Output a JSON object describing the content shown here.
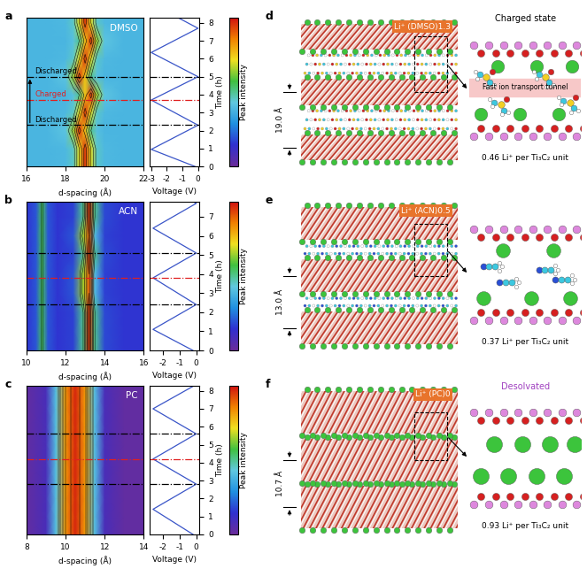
{
  "chart_data": [
    {
      "panel": "a",
      "type": "heatmap",
      "name": "DMSO",
      "x_label": "d-spacing (Å)",
      "xlim": [
        16,
        22
      ],
      "xticks": [
        16,
        18,
        20,
        22
      ],
      "y_label": "Time (h)",
      "ylim": [
        0,
        8.3
      ],
      "yticks": [
        0,
        1,
        2,
        3,
        4,
        5,
        6,
        7,
        8
      ],
      "d_spacing": [
        16,
        17,
        18,
        18.4,
        18.7,
        19.0,
        19.3,
        19.6,
        20,
        21,
        22
      ],
      "time": [
        0,
        1,
        2,
        3,
        4,
        5,
        6,
        7,
        8,
        8.3
      ],
      "cells": [
        [
          0.38,
          0.38,
          0.39,
          0.45,
          0.7,
          0.95,
          0.7,
          0.45,
          0.39,
          0.38,
          0.38
        ],
        [
          0.38,
          0.38,
          0.39,
          0.45,
          0.7,
          0.95,
          0.7,
          0.45,
          0.39,
          0.38,
          0.38
        ],
        [
          0.38,
          0.38,
          0.42,
          0.65,
          0.95,
          0.75,
          0.5,
          0.41,
          0.38,
          0.38,
          0.38
        ],
        [
          0.38,
          0.38,
          0.39,
          0.45,
          0.7,
          0.95,
          0.7,
          0.45,
          0.39,
          0.38,
          0.38
        ],
        [
          0.38,
          0.38,
          0.38,
          0.41,
          0.5,
          0.75,
          0.95,
          0.65,
          0.42,
          0.38,
          0.38
        ],
        [
          0.38,
          0.38,
          0.42,
          0.65,
          0.95,
          0.75,
          0.5,
          0.41,
          0.38,
          0.38,
          0.38
        ],
        [
          0.38,
          0.38,
          0.39,
          0.45,
          0.7,
          0.95,
          0.7,
          0.45,
          0.39,
          0.38,
          0.38
        ],
        [
          0.38,
          0.38,
          0.38,
          0.41,
          0.5,
          0.75,
          0.95,
          0.65,
          0.42,
          0.38,
          0.38
        ],
        [
          0.38,
          0.38,
          0.39,
          0.45,
          0.7,
          0.95,
          0.7,
          0.45,
          0.39,
          0.38,
          0.38
        ],
        [
          0.38,
          0.38,
          0.39,
          0.45,
          0.7,
          0.95,
          0.7,
          0.45,
          0.39,
          0.38,
          0.38
        ]
      ],
      "colorbar": {
        "label": "Peak intensity",
        "range": [
          0,
          1
        ],
        "ticks": []
      },
      "markers": [
        {
          "time": 2.3,
          "label": "Discharged",
          "color": "#000000"
        },
        {
          "time": 3.7,
          "label": "Charged",
          "color": "#e02020"
        },
        {
          "time": 5.0,
          "label": "Discharged",
          "color": "#000000"
        }
      ],
      "voltage": {
        "type": "line",
        "x_label": "Voltage (V)",
        "xlim": [
          -3.1,
          0.1
        ],
        "xticks": [
          -3,
          -2,
          -1,
          0
        ],
        "time": [
          0,
          0.95,
          2.3,
          3.7,
          5.0,
          6.35,
          7.7,
          8.3
        ],
        "values": [
          -0.2,
          -3,
          0,
          -3,
          0,
          -3,
          0,
          -1.3
        ],
        "color": "#3a55c8"
      }
    },
    {
      "panel": "b",
      "type": "heatmap",
      "name": "ACN",
      "x_label": "d-spacing (Å)",
      "xlim": [
        10,
        16
      ],
      "xticks": [
        10,
        12,
        14,
        16
      ],
      "y_label": "Time (h)",
      "ylim": [
        0,
        7.8
      ],
      "yticks": [
        0,
        1,
        2,
        3,
        4,
        5,
        6,
        7
      ],
      "d_spacing": [
        10,
        10.5,
        10.8,
        11.1,
        11.6,
        12.4,
        12.9,
        13.2,
        13.5,
        14,
        15,
        16
      ],
      "time": [
        0,
        1,
        2,
        3,
        4,
        5,
        6,
        7,
        7.8
      ],
      "cells": [
        [
          0.15,
          0.2,
          0.55,
          0.2,
          0.15,
          0.17,
          0.5,
          0.95,
          0.5,
          0.18,
          0.15,
          0.15
        ],
        [
          0.15,
          0.2,
          0.55,
          0.2,
          0.15,
          0.17,
          0.5,
          0.95,
          0.5,
          0.18,
          0.15,
          0.15
        ],
        [
          0.15,
          0.2,
          0.55,
          0.2,
          0.15,
          0.17,
          0.5,
          0.95,
          0.5,
          0.18,
          0.15,
          0.15
        ],
        [
          0.15,
          0.2,
          0.55,
          0.2,
          0.15,
          0.2,
          0.65,
          0.9,
          0.4,
          0.17,
          0.15,
          0.15
        ],
        [
          0.15,
          0.2,
          0.55,
          0.2,
          0.15,
          0.2,
          0.65,
          0.9,
          0.4,
          0.17,
          0.15,
          0.15
        ],
        [
          0.15,
          0.2,
          0.55,
          0.2,
          0.15,
          0.17,
          0.5,
          0.95,
          0.5,
          0.18,
          0.15,
          0.15
        ],
        [
          0.15,
          0.2,
          0.55,
          0.2,
          0.15,
          0.2,
          0.65,
          0.9,
          0.4,
          0.17,
          0.15,
          0.15
        ],
        [
          0.15,
          0.2,
          0.55,
          0.2,
          0.15,
          0.17,
          0.5,
          0.95,
          0.5,
          0.18,
          0.15,
          0.15
        ],
        [
          0.15,
          0.2,
          0.55,
          0.2,
          0.15,
          0.17,
          0.5,
          0.95,
          0.5,
          0.18,
          0.15,
          0.15
        ]
      ],
      "colorbar": {
        "label": "Peak intensity",
        "range": [
          0,
          1
        ],
        "ticks": []
      },
      "markers": [
        {
          "time": 2.4,
          "color": "#000000"
        },
        {
          "time": 3.8,
          "color": "#e02020"
        },
        {
          "time": 5.1,
          "color": "#000000"
        }
      ],
      "voltage": {
        "type": "line",
        "x_label": "Voltage (V)",
        "xlim": [
          -2.8,
          0.2
        ],
        "xticks": [
          -2,
          -1,
          0
        ],
        "time": [
          0,
          1.1,
          2.4,
          3.8,
          5.1,
          6.4,
          7.7,
          7.8
        ],
        "values": [
          -0.2,
          -2.6,
          0,
          -2.6,
          0,
          -2.6,
          0,
          -0.2
        ],
        "color": "#3a55c8"
      }
    },
    {
      "panel": "c",
      "type": "heatmap",
      "name": "PC",
      "x_label": "d-spacing (Å)",
      "xlim": [
        8,
        14
      ],
      "xticks": [
        8,
        10,
        12,
        14
      ],
      "y_label": "Time (h)",
      "ylim": [
        0,
        8.3
      ],
      "yticks": [
        0,
        1,
        2,
        3,
        4,
        5,
        6,
        7,
        8
      ],
      "d_spacing": [
        8,
        9,
        9.5,
        10,
        10.5,
        11,
        11.5,
        12,
        13,
        14
      ],
      "time": [
        0,
        1,
        2,
        3,
        4,
        5,
        6,
        7,
        8,
        8.3
      ],
      "cells": [
        [
          0.02,
          0.08,
          0.4,
          0.82,
          0.97,
          0.82,
          0.4,
          0.08,
          0.02,
          0.02
        ],
        [
          0.02,
          0.08,
          0.4,
          0.82,
          0.97,
          0.82,
          0.4,
          0.08,
          0.02,
          0.02
        ],
        [
          0.02,
          0.08,
          0.4,
          0.82,
          0.97,
          0.82,
          0.4,
          0.08,
          0.02,
          0.02
        ],
        [
          0.02,
          0.08,
          0.4,
          0.82,
          0.97,
          0.82,
          0.4,
          0.08,
          0.02,
          0.02
        ],
        [
          0.02,
          0.08,
          0.4,
          0.82,
          0.97,
          0.82,
          0.4,
          0.08,
          0.02,
          0.02
        ],
        [
          0.02,
          0.08,
          0.4,
          0.82,
          0.97,
          0.82,
          0.4,
          0.08,
          0.02,
          0.02
        ],
        [
          0.02,
          0.08,
          0.4,
          0.82,
          0.97,
          0.82,
          0.4,
          0.08,
          0.02,
          0.02
        ],
        [
          0.02,
          0.08,
          0.4,
          0.82,
          0.97,
          0.82,
          0.4,
          0.08,
          0.02,
          0.02
        ],
        [
          0.02,
          0.08,
          0.4,
          0.82,
          0.97,
          0.82,
          0.4,
          0.08,
          0.02,
          0.02
        ],
        [
          0.02,
          0.08,
          0.4,
          0.82,
          0.97,
          0.82,
          0.4,
          0.08,
          0.02,
          0.02
        ]
      ],
      "colorbar": {
        "label": "Peak intensity",
        "range": [
          0,
          1
        ],
        "ticks": []
      },
      "markers": [
        {
          "time": 2.8,
          "color": "#000000"
        },
        {
          "time": 4.2,
          "color": "#e02020"
        },
        {
          "time": 5.6,
          "color": "#000000"
        }
      ],
      "voltage": {
        "type": "line",
        "x_label": "Voltage (V)",
        "xlim": [
          -2.8,
          0.2
        ],
        "xticks": [
          -2,
          -1,
          0
        ],
        "time": [
          0,
          1.4,
          2.8,
          4.2,
          5.6,
          7.0,
          8.3
        ],
        "values": [
          -0.2,
          -2.6,
          0,
          -2.6,
          0,
          -2.6,
          -0.1
        ],
        "color": "#3a55c8"
      }
    }
  ],
  "snapshots": [
    {
      "panel": "d",
      "label": "Li⁺ (DMSO)1.3",
      "spacing": "19.0 Å",
      "zoom_title": {
        "text": "Charged state",
        "color": "#000000"
      },
      "zoom_note": "Fast ion transport tunnel",
      "caption": "0.46 Li⁺ per Ti₃C₂ unit"
    },
    {
      "panel": "e",
      "label": "Li⁺ (ACN)0.5",
      "spacing": "13.0 Å",
      "caption": "0.37 Li⁺ per Ti₃C₂ unit"
    },
    {
      "panel": "f",
      "label": "Li⁺ (PC)0",
      "spacing": "10.7 Å",
      "zoom_title": {
        "text": "Desolvated",
        "color": "#a040c0"
      },
      "caption": "0.93 Li⁺ per Ti₃C₂ unit"
    }
  ]
}
